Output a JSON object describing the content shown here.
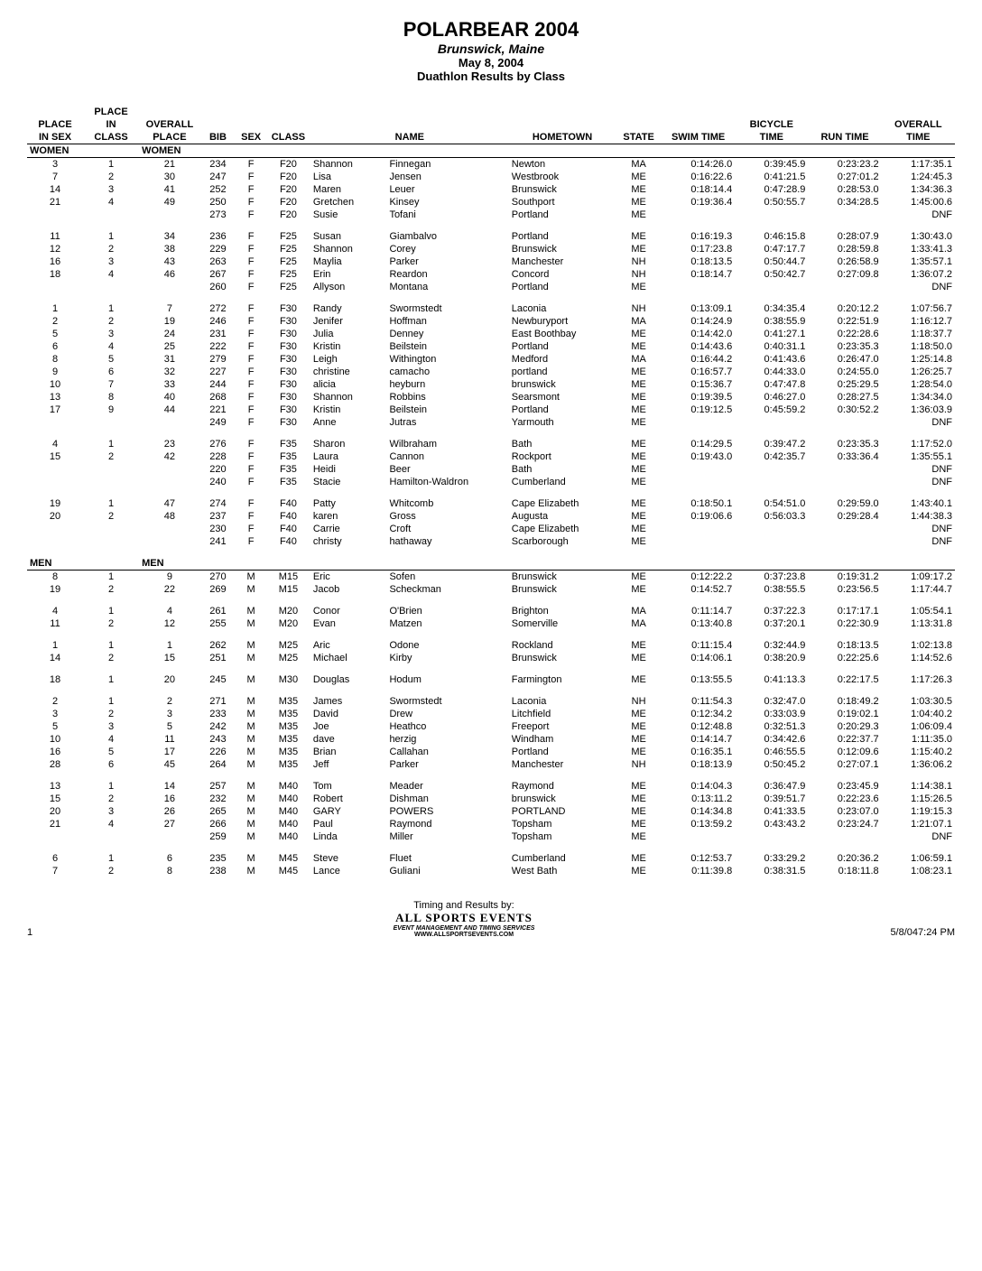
{
  "header": {
    "title": "POLARBEAR 2004",
    "subtitle": "Brunswick, Maine",
    "date": "May 8, 2004",
    "event": "Duathlon Results by Class"
  },
  "columns": [
    "PLACE IN SEX",
    "PLACE IN CLASS",
    "OVERALL PLACE",
    "BIB",
    "SEX",
    "CLASS",
    "NAME",
    "",
    "HOMETOWN",
    "STATE",
    "SWIM TIME",
    "BICYCLE TIME",
    "RUN TIME",
    "OVERALL TIME"
  ],
  "col_header_lines": {
    "c0": [
      "",
      "PLACE",
      "IN SEX"
    ],
    "c1": [
      "PLACE",
      "IN",
      "CLASS"
    ],
    "c2": [
      "",
      "OVERALL",
      "PLACE"
    ],
    "c3": [
      "",
      "",
      "BIB"
    ],
    "c4": [
      "",
      "",
      "SEX"
    ],
    "c5": [
      "",
      "",
      "CLASS"
    ],
    "c6": [
      "",
      "",
      "NAME"
    ],
    "c7": [
      "",
      "",
      ""
    ],
    "c8": [
      "",
      "",
      "HOMETOWN"
    ],
    "c9": [
      "",
      "",
      "STATE"
    ],
    "c10": [
      "",
      "",
      "SWIM TIME"
    ],
    "c11": [
      "",
      "BICYCLE",
      "TIME"
    ],
    "c12": [
      "",
      "",
      "RUN TIME"
    ],
    "c13": [
      "",
      "OVERALL",
      "TIME"
    ]
  },
  "sections": [
    {
      "label_left": "WOMEN",
      "label_right": "WOMEN",
      "groups": [
        [
          [
            3,
            1,
            21,
            234,
            "F",
            "F20",
            "Shannon",
            "Finnegan",
            "Newton",
            "MA",
            "0:14:26.0",
            "0:39:45.9",
            "0:23:23.2",
            "1:17:35.1"
          ],
          [
            7,
            2,
            30,
            247,
            "F",
            "F20",
            "Lisa",
            "Jensen",
            "Westbrook",
            "ME",
            "0:16:22.6",
            "0:41:21.5",
            "0:27:01.2",
            "1:24:45.3"
          ],
          [
            14,
            3,
            41,
            252,
            "F",
            "F20",
            "Maren",
            "Leuer",
            "Brunswick",
            "ME",
            "0:18:14.4",
            "0:47:28.9",
            "0:28:53.0",
            "1:34:36.3"
          ],
          [
            21,
            4,
            49,
            250,
            "F",
            "F20",
            "Gretchen",
            "Kinsey",
            "Southport",
            "ME",
            "0:19:36.4",
            "0:50:55.7",
            "0:34:28.5",
            "1:45:00.6"
          ],
          [
            "",
            "",
            "",
            273,
            "F",
            "F20",
            "Susie",
            "Tofani",
            "Portland",
            "ME",
            "",
            "",
            "",
            "DNF"
          ]
        ],
        [
          [
            11,
            1,
            34,
            236,
            "F",
            "F25",
            "Susan",
            "Giambalvo",
            "Portland",
            "ME",
            "0:16:19.3",
            "0:46:15.8",
            "0:28:07.9",
            "1:30:43.0"
          ],
          [
            12,
            2,
            38,
            229,
            "F",
            "F25",
            "Shannon",
            "Corey",
            "Brunswick",
            "ME",
            "0:17:23.8",
            "0:47:17.7",
            "0:28:59.8",
            "1:33:41.3"
          ],
          [
            16,
            3,
            43,
            263,
            "F",
            "F25",
            "Maylia",
            "Parker",
            "Manchester",
            "NH",
            "0:18:13.5",
            "0:50:44.7",
            "0:26:58.9",
            "1:35:57.1"
          ],
          [
            18,
            4,
            46,
            267,
            "F",
            "F25",
            "Erin",
            "Reardon",
            "Concord",
            "NH",
            "0:18:14.7",
            "0:50:42.7",
            "0:27:09.8",
            "1:36:07.2"
          ],
          [
            "",
            "",
            "",
            260,
            "F",
            "F25",
            "Allyson",
            "Montana",
            "Portland",
            "ME",
            "",
            "",
            "",
            "DNF"
          ]
        ],
        [
          [
            1,
            1,
            7,
            272,
            "F",
            "F30",
            "Randy",
            "Swormstedt",
            "Laconia",
            "NH",
            "0:13:09.1",
            "0:34:35.4",
            "0:20:12.2",
            "1:07:56.7"
          ],
          [
            2,
            2,
            19,
            246,
            "F",
            "F30",
            "Jenifer",
            "Hoffman",
            "Newburyport",
            "MA",
            "0:14:24.9",
            "0:38:55.9",
            "0:22:51.9",
            "1:16:12.7"
          ],
          [
            5,
            3,
            24,
            231,
            "F",
            "F30",
            "Julia",
            "Denney",
            "East Boothbay",
            "ME",
            "0:14:42.0",
            "0:41:27.1",
            "0:22:28.6",
            "1:18:37.7"
          ],
          [
            6,
            4,
            25,
            222,
            "F",
            "F30",
            "Kristin",
            "Beilstein",
            "Portland",
            "ME",
            "0:14:43.6",
            "0:40:31.1",
            "0:23:35.3",
            "1:18:50.0"
          ],
          [
            8,
            5,
            31,
            279,
            "F",
            "F30",
            "Leigh",
            "Withington",
            "Medford",
            "MA",
            "0:16:44.2",
            "0:41:43.6",
            "0:26:47.0",
            "1:25:14.8"
          ],
          [
            9,
            6,
            32,
            227,
            "F",
            "F30",
            "christine",
            "camacho",
            "portland",
            "ME",
            "0:16:57.7",
            "0:44:33.0",
            "0:24:55.0",
            "1:26:25.7"
          ],
          [
            10,
            7,
            33,
            244,
            "F",
            "F30",
            "alicia",
            "heyburn",
            "brunswick",
            "ME",
            "0:15:36.7",
            "0:47:47.8",
            "0:25:29.5",
            "1:28:54.0"
          ],
          [
            13,
            8,
            40,
            268,
            "F",
            "F30",
            "Shannon",
            "Robbins",
            "Searsmont",
            "ME",
            "0:19:39.5",
            "0:46:27.0",
            "0:28:27.5",
            "1:34:34.0"
          ],
          [
            17,
            9,
            44,
            221,
            "F",
            "F30",
            "Kristin",
            "Beilstein",
            "Portland",
            "ME",
            "0:19:12.5",
            "0:45:59.2",
            "0:30:52.2",
            "1:36:03.9"
          ],
          [
            "",
            "",
            "",
            249,
            "F",
            "F30",
            "Anne",
            "Jutras",
            "Yarmouth",
            "ME",
            "",
            "",
            "",
            "DNF"
          ]
        ],
        [
          [
            4,
            1,
            23,
            276,
            "F",
            "F35",
            "Sharon",
            "Wilbraham",
            "Bath",
            "ME",
            "0:14:29.5",
            "0:39:47.2",
            "0:23:35.3",
            "1:17:52.0"
          ],
          [
            15,
            2,
            42,
            228,
            "F",
            "F35",
            "Laura",
            "Cannon",
            "Rockport",
            "ME",
            "0:19:43.0",
            "0:42:35.7",
            "0:33:36.4",
            "1:35:55.1"
          ],
          [
            "",
            "",
            "",
            220,
            "F",
            "F35",
            "Heidi",
            "Beer",
            "Bath",
            "ME",
            "",
            "",
            "",
            "DNF"
          ],
          [
            "",
            "",
            "",
            240,
            "F",
            "F35",
            "Stacie",
            "Hamilton-Waldron",
            "Cumberland",
            "ME",
            "",
            "",
            "",
            "DNF"
          ]
        ],
        [
          [
            19,
            1,
            47,
            274,
            "F",
            "F40",
            "Patty",
            "Whitcomb",
            "Cape Elizabeth",
            "ME",
            "0:18:50.1",
            "0:54:51.0",
            "0:29:59.0",
            "1:43:40.1"
          ],
          [
            20,
            2,
            48,
            237,
            "F",
            "F40",
            "karen",
            "Gross",
            "Augusta",
            "ME",
            "0:19:06.6",
            "0:56:03.3",
            "0:29:28.4",
            "1:44:38.3"
          ],
          [
            "",
            "",
            "",
            230,
            "F",
            "F40",
            "Carrie",
            "Croft",
            "Cape Elizabeth",
            "ME",
            "",
            "",
            "",
            "DNF"
          ],
          [
            "",
            "",
            "",
            241,
            "F",
            "F40",
            "christy",
            "hathaway",
            "Scarborough",
            "ME",
            "",
            "",
            "",
            "DNF"
          ]
        ]
      ]
    },
    {
      "label_left": "MEN",
      "label_right": "MEN",
      "groups": [
        [
          [
            8,
            1,
            9,
            270,
            "M",
            "M15",
            "Eric",
            "Sofen",
            "Brunswick",
            "ME",
            "0:12:22.2",
            "0:37:23.8",
            "0:19:31.2",
            "1:09:17.2"
          ],
          [
            19,
            2,
            22,
            269,
            "M",
            "M15",
            "Jacob",
            "Scheckman",
            "Brunswick",
            "ME",
            "0:14:52.7",
            "0:38:55.5",
            "0:23:56.5",
            "1:17:44.7"
          ]
        ],
        [
          [
            4,
            1,
            4,
            261,
            "M",
            "M20",
            "Conor",
            "O'Brien",
            "Brighton",
            "MA",
            "0:11:14.7",
            "0:37:22.3",
            "0:17:17.1",
            "1:05:54.1"
          ],
          [
            11,
            2,
            12,
            255,
            "M",
            "M20",
            "Evan",
            "Matzen",
            "Somerville",
            "MA",
            "0:13:40.8",
            "0:37:20.1",
            "0:22:30.9",
            "1:13:31.8"
          ]
        ],
        [
          [
            1,
            1,
            1,
            262,
            "M",
            "M25",
            "Aric",
            "Odone",
            "Rockland",
            "ME",
            "0:11:15.4",
            "0:32:44.9",
            "0:18:13.5",
            "1:02:13.8"
          ],
          [
            14,
            2,
            15,
            251,
            "M",
            "M25",
            "Michael",
            "Kirby",
            "Brunswick",
            "ME",
            "0:14:06.1",
            "0:38:20.9",
            "0:22:25.6",
            "1:14:52.6"
          ]
        ],
        [
          [
            18,
            1,
            20,
            245,
            "M",
            "M30",
            "Douglas",
            "Hodum",
            "Farmington",
            "ME",
            "0:13:55.5",
            "0:41:13.3",
            "0:22:17.5",
            "1:17:26.3"
          ]
        ],
        [
          [
            2,
            1,
            2,
            271,
            "M",
            "M35",
            "James",
            "Swormstedt",
            "Laconia",
            "NH",
            "0:11:54.3",
            "0:32:47.0",
            "0:18:49.2",
            "1:03:30.5"
          ],
          [
            3,
            2,
            3,
            233,
            "M",
            "M35",
            "David",
            "Drew",
            "Litchfield",
            "ME",
            "0:12:34.2",
            "0:33:03.9",
            "0:19:02.1",
            "1:04:40.2"
          ],
          [
            5,
            3,
            5,
            242,
            "M",
            "M35",
            "Joe",
            "Heathco",
            "Freeport",
            "ME",
            "0:12:48.8",
            "0:32:51.3",
            "0:20:29.3",
            "1:06:09.4"
          ],
          [
            10,
            4,
            11,
            243,
            "M",
            "M35",
            "dave",
            "herzig",
            "Windham",
            "ME",
            "0:14:14.7",
            "0:34:42.6",
            "0:22:37.7",
            "1:11:35.0"
          ],
          [
            16,
            5,
            17,
            226,
            "M",
            "M35",
            "Brian",
            "Callahan",
            "Portland",
            "ME",
            "0:16:35.1",
            "0:46:55.5",
            "0:12:09.6",
            "1:15:40.2"
          ],
          [
            28,
            6,
            45,
            264,
            "M",
            "M35",
            "Jeff",
            "Parker",
            "Manchester",
            "NH",
            "0:18:13.9",
            "0:50:45.2",
            "0:27:07.1",
            "1:36:06.2"
          ]
        ],
        [
          [
            13,
            1,
            14,
            257,
            "M",
            "M40",
            "Tom",
            "Meader",
            "Raymond",
            "ME",
            "0:14:04.3",
            "0:36:47.9",
            "0:23:45.9",
            "1:14:38.1"
          ],
          [
            15,
            2,
            16,
            232,
            "M",
            "M40",
            "Robert",
            "Dishman",
            "brunswick",
            "ME",
            "0:13:11.2",
            "0:39:51.7",
            "0:22:23.6",
            "1:15:26.5"
          ],
          [
            20,
            3,
            26,
            265,
            "M",
            "M40",
            "GARY",
            "POWERS",
            "PORTLAND",
            "ME",
            "0:14:34.8",
            "0:41:33.5",
            "0:23:07.0",
            "1:19:15.3"
          ],
          [
            21,
            4,
            27,
            266,
            "M",
            "M40",
            "Paul",
            "Raymond",
            "Topsham",
            "ME",
            "0:13:59.2",
            "0:43:43.2",
            "0:23:24.7",
            "1:21:07.1"
          ],
          [
            "",
            "",
            "",
            259,
            "M",
            "M40",
            "Linda",
            "Miller",
            "Topsham",
            "ME",
            "",
            "",
            "",
            "DNF"
          ]
        ],
        [
          [
            6,
            1,
            6,
            235,
            "M",
            "M45",
            "Steve",
            "Fluet",
            "Cumberland",
            "ME",
            "0:12:53.7",
            "0:33:29.2",
            "0:20:36.2",
            "1:06:59.1"
          ],
          [
            7,
            2,
            8,
            238,
            "M",
            "M45",
            "Lance",
            "Guliani",
            "West Bath",
            "ME",
            "0:11:39.8",
            "0:38:31.5",
            "0:18:11.8",
            "1:08:23.1"
          ]
        ]
      ]
    }
  ],
  "footer": {
    "page": "1",
    "timing_by": "Timing and Results by:",
    "brand": "ALL SPORTS EVENTS",
    "tagline": "EVENT MANAGEMENT AND TIMING SERVICES",
    "url": "WWW.ALLSPORTSEVENTS.COM",
    "timestamp": "5/8/047:24 PM"
  },
  "styling": {
    "body_font_size": 12,
    "table_font_size": 11,
    "title_font_size": 22,
    "text_color": "#000000",
    "background_color": "#ffffff"
  }
}
